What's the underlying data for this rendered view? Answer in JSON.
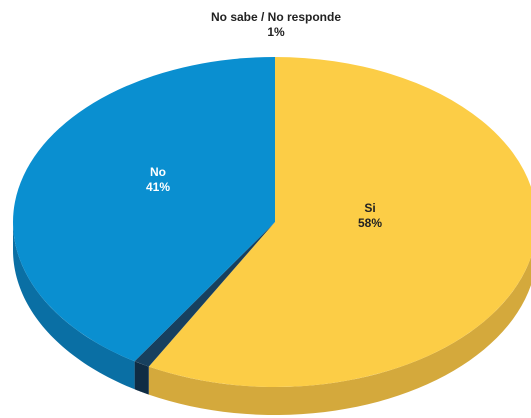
{
  "chart_data": {
    "type": "pie",
    "style": "3d",
    "title": "",
    "slices": [
      {
        "label": "Si",
        "value": 58,
        "value_label": "58%",
        "color": "#fccd46",
        "side_color": "#d4a93c"
      },
      {
        "label": "No sabe / No responde",
        "value": 1,
        "value_label": "1%",
        "color": "#17405f",
        "side_color": "#0f2c44"
      },
      {
        "label": "No",
        "value": 41,
        "value_label": "41%",
        "color": "#0a8fd0",
        "side_color": "#0a6fa4"
      }
    ]
  }
}
